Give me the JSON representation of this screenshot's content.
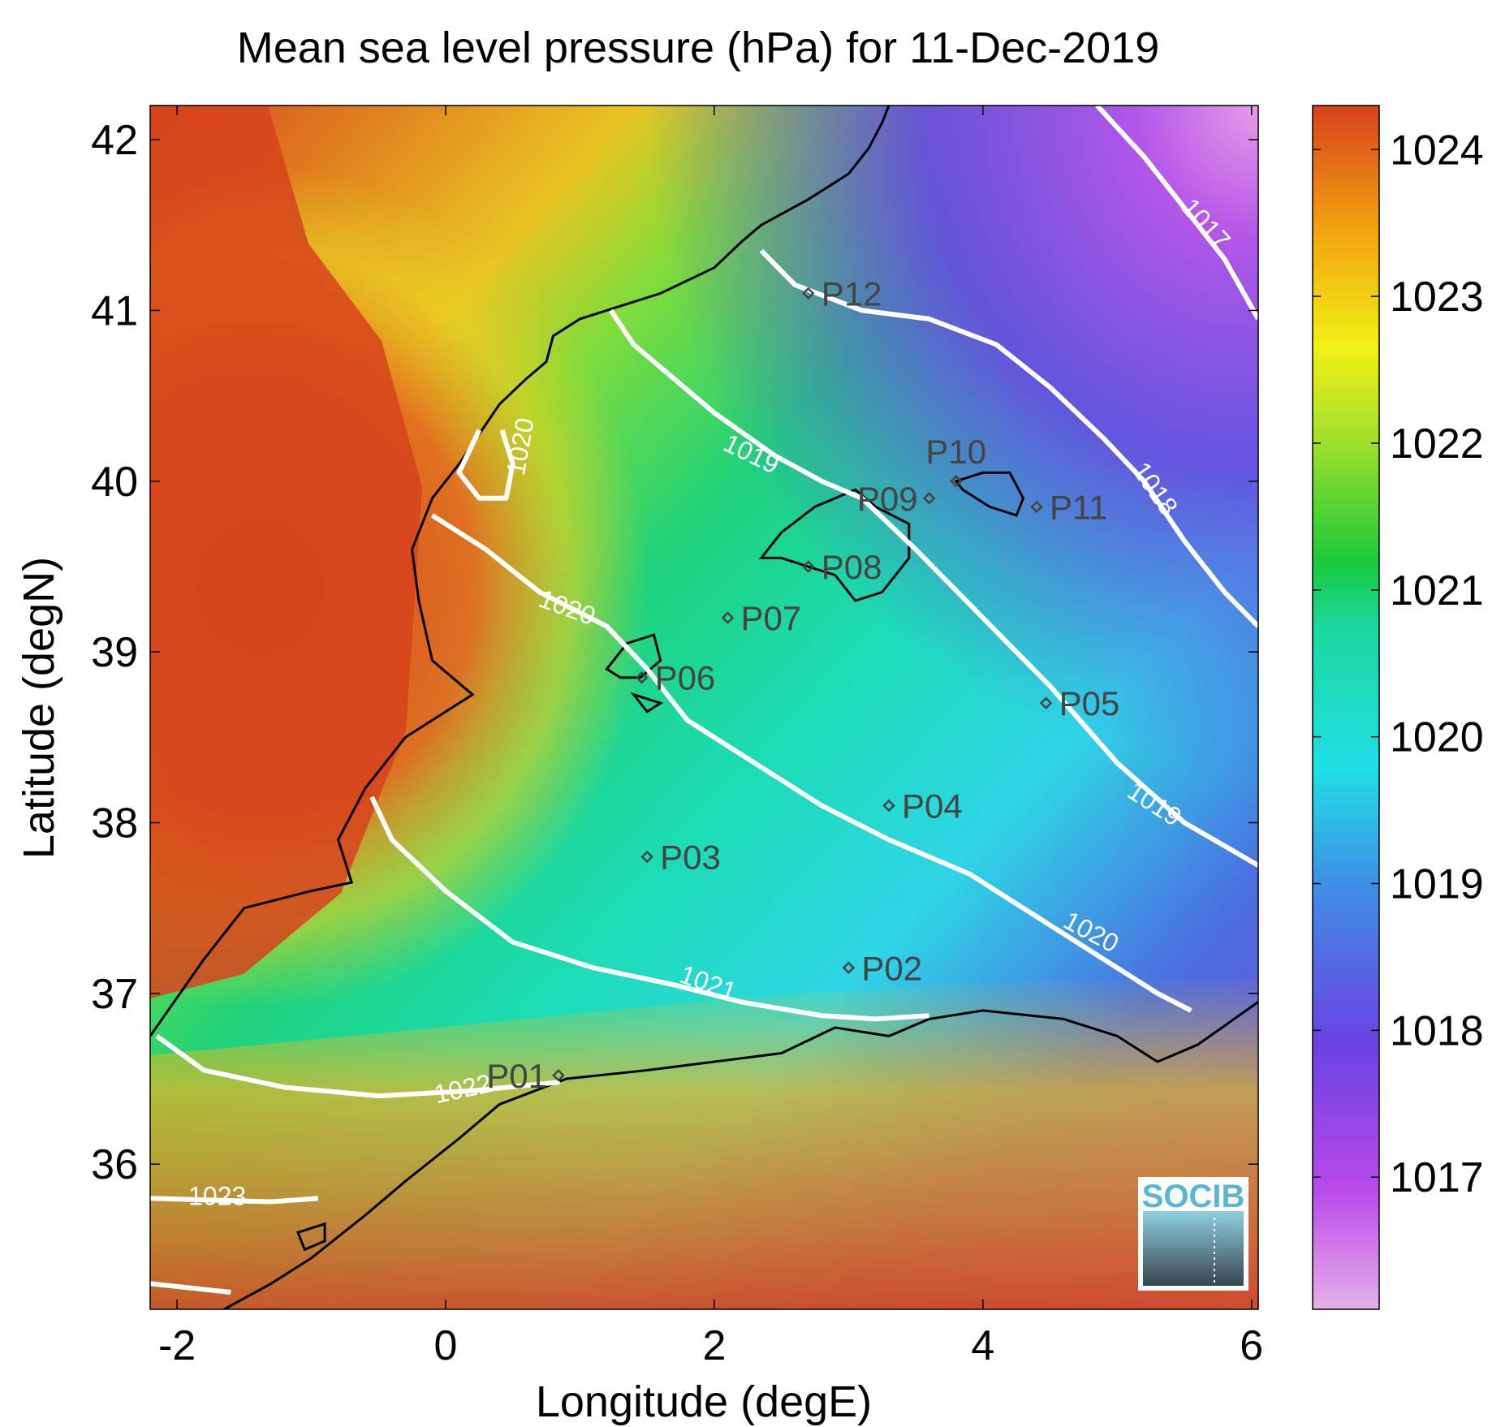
{
  "title": "Mean sea level pressure (hPa) for 11-Dec-2019",
  "xlabel": "Longitude (degE)",
  "ylabel": "Latitude (degN)",
  "x_ticks": [
    -2,
    0,
    2,
    4,
    6
  ],
  "y_ticks": [
    36,
    37,
    38,
    39,
    40,
    41,
    42
  ],
  "xlim": [
    -2.2,
    6.05
  ],
  "ylim": [
    35.15,
    42.2
  ],
  "colorbar": {
    "ticks": [
      1017,
      1018,
      1019,
      1020,
      1021,
      1022,
      1023,
      1024
    ],
    "range": [
      1016.1,
      1024.3
    ]
  },
  "points": [
    {
      "name": "P01",
      "lon": 0.84,
      "lat": 36.52,
      "label_side": "left"
    },
    {
      "name": "P02",
      "lon": 3.0,
      "lat": 37.15,
      "label_side": "right"
    },
    {
      "name": "P03",
      "lon": 1.5,
      "lat": 37.8,
      "label_side": "right"
    },
    {
      "name": "P04",
      "lon": 3.3,
      "lat": 38.1,
      "label_side": "right"
    },
    {
      "name": "P05",
      "lon": 4.47,
      "lat": 38.7,
      "label_side": "right"
    },
    {
      "name": "P06",
      "lon": 1.46,
      "lat": 38.85,
      "label_side": "right"
    },
    {
      "name": "P07",
      "lon": 2.1,
      "lat": 39.2,
      "label_side": "right"
    },
    {
      "name": "P08",
      "lon": 2.7,
      "lat": 39.5,
      "label_side": "right"
    },
    {
      "name": "P09",
      "lon": 3.6,
      "lat": 39.9,
      "label_side": "left"
    },
    {
      "name": "P10",
      "lon": 3.8,
      "lat": 40.0,
      "label_side": "above"
    },
    {
      "name": "P11",
      "lon": 4.4,
      "lat": 39.85,
      "label_side": "right"
    },
    {
      "name": "P12",
      "lon": 2.7,
      "lat": 41.1,
      "label_side": "right"
    }
  ],
  "contours": [
    {
      "value": "1017",
      "label_lon": 5.65,
      "label_lat": 41.5,
      "label_angle": 48,
      "line": [
        [
          4.85,
          42.2
        ],
        [
          5.2,
          41.9
        ],
        [
          5.55,
          41.55
        ],
        [
          5.8,
          41.3
        ],
        [
          6.05,
          40.95
        ]
      ]
    },
    {
      "value": "1018",
      "label_lon": 5.27,
      "label_lat": 39.95,
      "label_angle": 55,
      "line": [
        [
          2.35,
          41.35
        ],
        [
          2.6,
          41.15
        ],
        [
          3.1,
          41.0
        ],
        [
          3.6,
          40.95
        ],
        [
          4.1,
          40.8
        ],
        [
          4.5,
          40.55
        ],
        [
          4.9,
          40.25
        ],
        [
          5.2,
          40.0
        ],
        [
          5.5,
          39.65
        ],
        [
          5.8,
          39.35
        ],
        [
          6.05,
          39.15
        ]
      ]
    },
    {
      "value": "1019",
      "label_lon": 2.27,
      "label_lat": 40.15,
      "label_angle": 26,
      "line": [
        [
          1.23,
          41.0
        ],
        [
          1.4,
          40.8
        ],
        [
          1.7,
          40.6
        ],
        [
          2.0,
          40.4
        ],
        [
          2.45,
          40.15
        ],
        [
          2.8,
          40.0
        ],
        [
          3.1,
          39.9
        ],
        [
          3.5,
          39.6
        ],
        [
          4.0,
          39.2
        ],
        [
          4.5,
          38.8
        ],
        [
          5.0,
          38.35
        ],
        [
          5.5,
          38.0
        ],
        [
          6.05,
          37.75
        ]
      ]
    },
    {
      "value": "1019",
      "label_lon": 5.27,
      "label_lat": 38.1,
      "label_angle": 33,
      "line": []
    },
    {
      "value": "1020",
      "label_lon": 0.57,
      "label_lat": 40.2,
      "label_angle": -80,
      "line": [
        [
          0.42,
          40.3
        ],
        [
          0.5,
          40.1
        ],
        [
          0.45,
          39.9
        ],
        [
          0.25,
          39.9
        ],
        [
          0.1,
          40.05
        ],
        [
          0.25,
          40.3
        ]
      ]
    },
    {
      "value": "1020",
      "label_lon": 0.9,
      "label_lat": 39.25,
      "label_angle": 20,
      "line": [
        [
          -0.1,
          39.8
        ],
        [
          0.3,
          39.6
        ],
        [
          0.7,
          39.35
        ],
        [
          1.2,
          39.15
        ],
        [
          1.5,
          38.9
        ],
        [
          1.8,
          38.6
        ],
        [
          2.3,
          38.35
        ],
        [
          2.8,
          38.1
        ],
        [
          3.3,
          37.9
        ],
        [
          3.9,
          37.7
        ],
        [
          4.4,
          37.45
        ],
        [
          4.9,
          37.2
        ],
        [
          5.3,
          37.0
        ],
        [
          5.55,
          36.9
        ]
      ]
    },
    {
      "value": "1020",
      "label_lon": 4.8,
      "label_lat": 37.35,
      "label_angle": 28,
      "line": []
    },
    {
      "value": "1021",
      "label_lon": 1.95,
      "label_lat": 37.05,
      "label_angle": 20,
      "line": [
        [
          -0.55,
          38.15
        ],
        [
          -0.4,
          37.9
        ],
        [
          0.0,
          37.6
        ],
        [
          0.5,
          37.3
        ],
        [
          1.1,
          37.15
        ],
        [
          1.7,
          37.05
        ],
        [
          2.2,
          36.95
        ],
        [
          2.8,
          36.87
        ],
        [
          3.2,
          36.85
        ],
        [
          3.6,
          36.87
        ]
      ]
    },
    {
      "value": "1022",
      "label_lon": 0.13,
      "label_lat": 36.43,
      "label_angle": -12,
      "line": [
        [
          -2.15,
          36.75
        ],
        [
          -1.8,
          36.55
        ],
        [
          -1.2,
          36.45
        ],
        [
          -0.5,
          36.4
        ],
        [
          0.2,
          36.43
        ],
        [
          0.85,
          36.48
        ]
      ]
    },
    {
      "value": "1023",
      "label_lon": -1.7,
      "label_lat": 35.8,
      "label_angle": 0,
      "line": [
        [
          -2.2,
          35.8
        ],
        [
          -1.3,
          35.78
        ],
        [
          -0.95,
          35.8
        ]
      ]
    },
    {
      "value": "",
      "label_lon": 0,
      "label_lat": 0,
      "label_angle": 0,
      "line": [
        [
          -2.2,
          35.3
        ],
        [
          -1.6,
          35.25
        ]
      ]
    }
  ],
  "coastline_iberia": [
    [
      -2.2,
      36.75
    ],
    [
      -1.8,
      37.2
    ],
    [
      -1.5,
      37.5
    ],
    [
      -1.0,
      37.6
    ],
    [
      -0.7,
      37.65
    ],
    [
      -0.8,
      37.9
    ],
    [
      -0.6,
      38.2
    ],
    [
      -0.3,
      38.5
    ],
    [
      0.2,
      38.75
    ],
    [
      -0.1,
      38.95
    ],
    [
      -0.2,
      39.3
    ],
    [
      -0.25,
      39.6
    ],
    [
      -0.1,
      39.9
    ],
    [
      0.1,
      40.1
    ],
    [
      0.4,
      40.45
    ],
    [
      0.6,
      40.6
    ],
    [
      0.75,
      40.7
    ],
    [
      0.8,
      40.85
    ],
    [
      1.0,
      40.95
    ],
    [
      1.2,
      41.0
    ],
    [
      1.6,
      41.1
    ],
    [
      2.0,
      41.25
    ],
    [
      2.2,
      41.4
    ],
    [
      2.35,
      41.5
    ],
    [
      2.7,
      41.65
    ],
    [
      3.0,
      41.8
    ],
    [
      3.15,
      41.95
    ],
    [
      3.25,
      42.1
    ],
    [
      3.3,
      42.2
    ]
  ],
  "coastline_africa": [
    [
      -1.65,
      35.15
    ],
    [
      -1.3,
      35.3
    ],
    [
      -1.0,
      35.45
    ],
    [
      -0.6,
      35.7
    ],
    [
      -0.3,
      35.9
    ],
    [
      0.1,
      36.15
    ],
    [
      0.4,
      36.35
    ],
    [
      0.9,
      36.5
    ],
    [
      1.5,
      36.55
    ],
    [
      2.0,
      36.6
    ],
    [
      2.5,
      36.65
    ],
    [
      2.9,
      36.8
    ],
    [
      3.3,
      36.75
    ],
    [
      3.6,
      36.85
    ],
    [
      4.0,
      36.9
    ],
    [
      4.6,
      36.85
    ],
    [
      5.0,
      36.75
    ],
    [
      5.3,
      36.6
    ],
    [
      5.6,
      36.7
    ],
    [
      6.05,
      36.95
    ]
  ],
  "islands": [
    [
      [
        2.35,
        39.55
      ],
      [
        2.5,
        39.7
      ],
      [
        2.75,
        39.85
      ],
      [
        3.05,
        39.95
      ],
      [
        3.2,
        39.85
      ],
      [
        3.45,
        39.75
      ],
      [
        3.45,
        39.55
      ],
      [
        3.25,
        39.35
      ],
      [
        3.05,
        39.3
      ],
      [
        2.9,
        39.45
      ],
      [
        2.7,
        39.5
      ],
      [
        2.5,
        39.55
      ]
    ],
    [
      [
        3.8,
        40.0
      ],
      [
        4.0,
        40.05
      ],
      [
        4.2,
        40.05
      ],
      [
        4.3,
        39.9
      ],
      [
        4.25,
        39.8
      ],
      [
        4.05,
        39.85
      ],
      [
        3.85,
        39.95
      ]
    ],
    [
      [
        1.2,
        38.9
      ],
      [
        1.35,
        39.05
      ],
      [
        1.55,
        39.1
      ],
      [
        1.6,
        38.95
      ],
      [
        1.45,
        38.85
      ],
      [
        1.3,
        38.85
      ]
    ],
    [
      [
        1.4,
        38.75
      ],
      [
        1.6,
        38.7
      ],
      [
        1.5,
        38.65
      ]
    ],
    [
      [
        -1.1,
        35.6
      ],
      [
        -0.9,
        35.65
      ],
      [
        -0.9,
        35.55
      ],
      [
        -1.05,
        35.5
      ]
    ]
  ],
  "logo": "SOCIB"
}
